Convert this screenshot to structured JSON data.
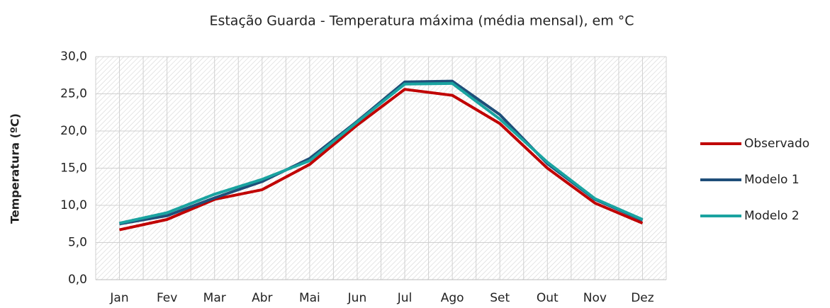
{
  "chart_data": {
    "type": "line",
    "title": "Estação Guarda - Temperatura máxima (média mensal), em °C",
    "y_label": "Temperatura (ºC)",
    "categories": [
      "Jan",
      "Fev",
      "Mar",
      "Abr",
      "Mai",
      "Jun",
      "Jul",
      "Ago",
      "Set",
      "Out",
      "Nov",
      "Dez"
    ],
    "series": [
      {
        "name": "Observado",
        "color": "#c00000",
        "values": [
          6.7,
          8.1,
          10.8,
          12.1,
          15.5,
          20.8,
          25.6,
          24.8,
          21.0,
          15.0,
          10.3,
          7.6
        ]
      },
      {
        "name": "Modelo 1",
        "color": "#1f4e79",
        "values": [
          7.5,
          8.6,
          11.0,
          13.2,
          16.3,
          21.3,
          26.6,
          26.7,
          22.2,
          15.6,
          10.8,
          8.0
        ]
      },
      {
        "name": "Modelo 2",
        "color": "#1aa3a0",
        "values": [
          7.6,
          9.0,
          11.5,
          13.5,
          16.0,
          21.2,
          26.3,
          26.4,
          21.6,
          15.8,
          10.9,
          8.1
        ]
      }
    ],
    "ylim": [
      0,
      30
    ],
    "yticks": [
      {
        "value": 0,
        "label": "0,0"
      },
      {
        "value": 5,
        "label": "5,0"
      },
      {
        "value": 10,
        "label": "10,0"
      },
      {
        "value": 15,
        "label": "15,0"
      },
      {
        "value": 20,
        "label": "20,0"
      },
      {
        "value": 25,
        "label": "25,0"
      },
      {
        "value": 30,
        "label": "30,0"
      }
    ],
    "grid": true,
    "legend": "right"
  }
}
